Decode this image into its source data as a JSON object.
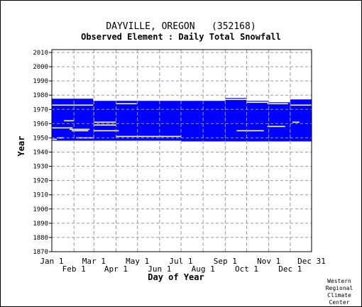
{
  "chart_data": {
    "type": "heatmap",
    "title": "DAYVILLE, OREGON   (352168)",
    "subtitle": "Observed Element : Daily Total Snowfall",
    "xlabel": "Day of Year",
    "ylabel": "Year",
    "xlim": [
      1,
      365
    ],
    "ylim": [
      1870,
      2012
    ],
    "yticks": [
      1870,
      1880,
      1890,
      1900,
      1910,
      1920,
      1930,
      1940,
      1950,
      1960,
      1970,
      1980,
      1990,
      2000,
      2010
    ],
    "xticks_top": [
      {
        "label": "Jan 1",
        "day": 1
      },
      {
        "label": "Mar 1",
        "day": 60
      },
      {
        "label": "May 1",
        "day": 121
      },
      {
        "label": "Jul 1",
        "day": 182
      },
      {
        "label": "Sep 1",
        "day": 244
      },
      {
        "label": "Nov 1",
        "day": 305
      },
      {
        "label": "Dec 31",
        "day": 365
      }
    ],
    "xticks_bottom": [
      {
        "label": "Feb 1",
        "day": 32
      },
      {
        "label": "Apr 1",
        "day": 91
      },
      {
        "label": "Jun 1",
        "day": 152
      },
      {
        "label": "Aug 1",
        "day": 213
      },
      {
        "label": "Oct 1",
        "day": 274
      },
      {
        "label": "Dec 1",
        "day": 335
      }
    ],
    "grid": true,
    "data_color": "#0000ff",
    "data_blocks": [
      {
        "day_start": 1,
        "day_end": 59,
        "year_start": 1948,
        "year_end": 1977.5
      },
      {
        "day_start": 59,
        "day_end": 182,
        "year_start": 1948,
        "year_end": 1976
      },
      {
        "day_start": 182,
        "day_end": 244,
        "year_start": 1947.5,
        "year_end": 1976
      },
      {
        "day_start": 244,
        "day_end": 274,
        "year_start": 1947.5,
        "year_end": 1978
      },
      {
        "day_start": 274,
        "day_end": 305,
        "year_start": 1947.5,
        "year_end": 1976
      },
      {
        "day_start": 305,
        "day_end": 335,
        "year_start": 1947.5,
        "year_end": 1975
      },
      {
        "day_start": 335,
        "day_end": 365,
        "year_start": 1947.5,
        "year_end": 1977
      }
    ],
    "missing_gaps": [
      {
        "day_start": 1,
        "day_end": 59,
        "year": 1973
      },
      {
        "day_start": 1,
        "day_end": 30,
        "year": 1957
      },
      {
        "day_start": 1,
        "day_end": 8,
        "year": 1949
      },
      {
        "day_start": 8,
        "day_end": 18,
        "year": 1950
      },
      {
        "day_start": 18,
        "day_end": 32,
        "year": 1962
      },
      {
        "day_start": 26,
        "day_end": 54,
        "year": 1956
      },
      {
        "day_start": 29,
        "day_end": 52,
        "year": 1955
      },
      {
        "day_start": 35,
        "day_end": 60,
        "year": 1950
      },
      {
        "day_start": 60,
        "day_end": 91,
        "year": 1961
      },
      {
        "day_start": 60,
        "day_end": 91,
        "year": 1959
      },
      {
        "day_start": 60,
        "day_end": 95,
        "year": 1955
      },
      {
        "day_start": 91,
        "day_end": 120,
        "year": 1974
      },
      {
        "day_start": 91,
        "day_end": 182,
        "year": 1951
      },
      {
        "day_start": 260,
        "day_end": 298,
        "year": 1955
      },
      {
        "day_start": 303,
        "day_end": 328,
        "year": 1958
      },
      {
        "day_start": 303,
        "day_end": 332,
        "year": 1974
      },
      {
        "day_start": 244,
        "day_end": 274,
        "year": 1977
      },
      {
        "day_start": 338,
        "day_end": 348,
        "year": 1961
      },
      {
        "day_start": 274,
        "day_end": 305,
        "year": 1975
      },
      {
        "day_start": 335,
        "day_end": 365,
        "year": 1973
      }
    ]
  },
  "credit": [
    "Western",
    "Regional",
    "Climate",
    "Center"
  ]
}
